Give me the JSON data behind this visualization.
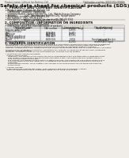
{
  "bg_color": "#f0ede8",
  "header_left": "Product name: Lithium Ion Battery Cell",
  "header_right_line1": "Publication number: SPX1521S-DS013",
  "header_right_line2": "Establishment / Revision: Dec.7.2010",
  "title": "Safety data sheet for chemical products (SDS)",
  "section1_title": "1. PRODUCT AND COMPANY IDENTIFICATION",
  "section1_lines": [
    "• Product name: Lithium Ion Battery Cell",
    "• Product code: Cylindrical-type cell",
    "   (UR18650A, UR18650L, UR18650A)",
    "• Company name:   Sanyo Electric Co., Ltd., Mobile Energy Company",
    "• Address:           2001  Kamionosen, Sumoto-City, Hyogo, Japan",
    "• Telephone number:  +81-799-20-4111",
    "• Fax number:   +81-799-20-4121",
    "• Emergency telephone number (daytime): +81-799-20-3562",
    "                          (Night and holiday): +81-799-20-4121"
  ],
  "section2_title": "2. COMPOSITION / INFORMATION ON INGREDIENTS",
  "section2_intro": "• Substance or preparation: Preparation",
  "section2_sub": "• Information about the chemical nature of product:",
  "table_col_starts": [
    3,
    60,
    95,
    130,
    197
  ],
  "table_header_row1": [
    "Component name",
    "CAS number",
    "Concentration /",
    "Classification and"
  ],
  "table_header_row2": [
    "Several name",
    "",
    "Concentration range",
    "hazard labeling"
  ],
  "table_rows": [
    [
      "Lithium cobalt oxide",
      "-",
      "30-60%",
      "-"
    ],
    [
      "(LiMn/Co(PO4)x)",
      "",
      "",
      ""
    ],
    [
      "Iron",
      "7439-89-6",
      "15-25%",
      "-"
    ],
    [
      "Aluminum",
      "7429-90-5",
      "2-5%",
      "-"
    ],
    [
      "Graphite",
      "7782-42-5",
      "10-25%",
      "-"
    ],
    [
      "(flake or graphite-α)",
      "7782-44-7",
      "",
      ""
    ],
    [
      "(or flake graphite-α)",
      "",
      "",
      ""
    ],
    [
      "Copper",
      "7440-50-8",
      "5-15%",
      "Sensitization of the skin"
    ],
    [
      "",
      "",
      "",
      "group No.2"
    ],
    [
      "Organic electrolyte",
      "-",
      "10-20%",
      "Inflammable liquid"
    ]
  ],
  "section3_title": "3. HAZARDS IDENTIFICATION",
  "section3_text": [
    "For the battery cell, chemical materials are stored in a hermetically sealed metal case, designed to withstand",
    "temperatures and pressures encountered during normal use. As a result, during normal use, there is no",
    "physical danger of ignition or explosion and there is no danger of hazardous materials leakage.",
    "However, if exposed to a fire, added mechanical shocks, decomposed, when electric current actively circulates,",
    "the gas maybe ventilated (or operate). The battery cell case will be breached at fire-extreme. Hazardous",
    "materials may be released.",
    "Moreover, if heated strongly by the surrounding fire, solid gas may be emitted.",
    "",
    "• Most important hazard and effects:",
    "  Human health effects:",
    "    Inhalation: The release of the electrolyte has an anaesthesia action and stimulates a respiratory tract.",
    "    Skin contact: The release of the electrolyte stimulates a skin. The electrolyte skin contact causes a",
    "    sore and stimulation on the skin.",
    "    Eye contact: The release of the electrolyte stimulates eyes. The electrolyte eye contact causes a sore",
    "    and stimulation on the eye. Especially, a substance that causes a strong inflammation of the eye is",
    "    contained.",
    "    Environmental effects: Since a battery cell remains in the environment, do not throw out it into the",
    "    environment.",
    "",
    "• Specific hazards:",
    "  If the electrolyte contacts with water, it will generate detrimental hydrogen fluoride.",
    "  Since the liquid electrolyte is inflammable liquid, do not bring close to fire."
  ]
}
